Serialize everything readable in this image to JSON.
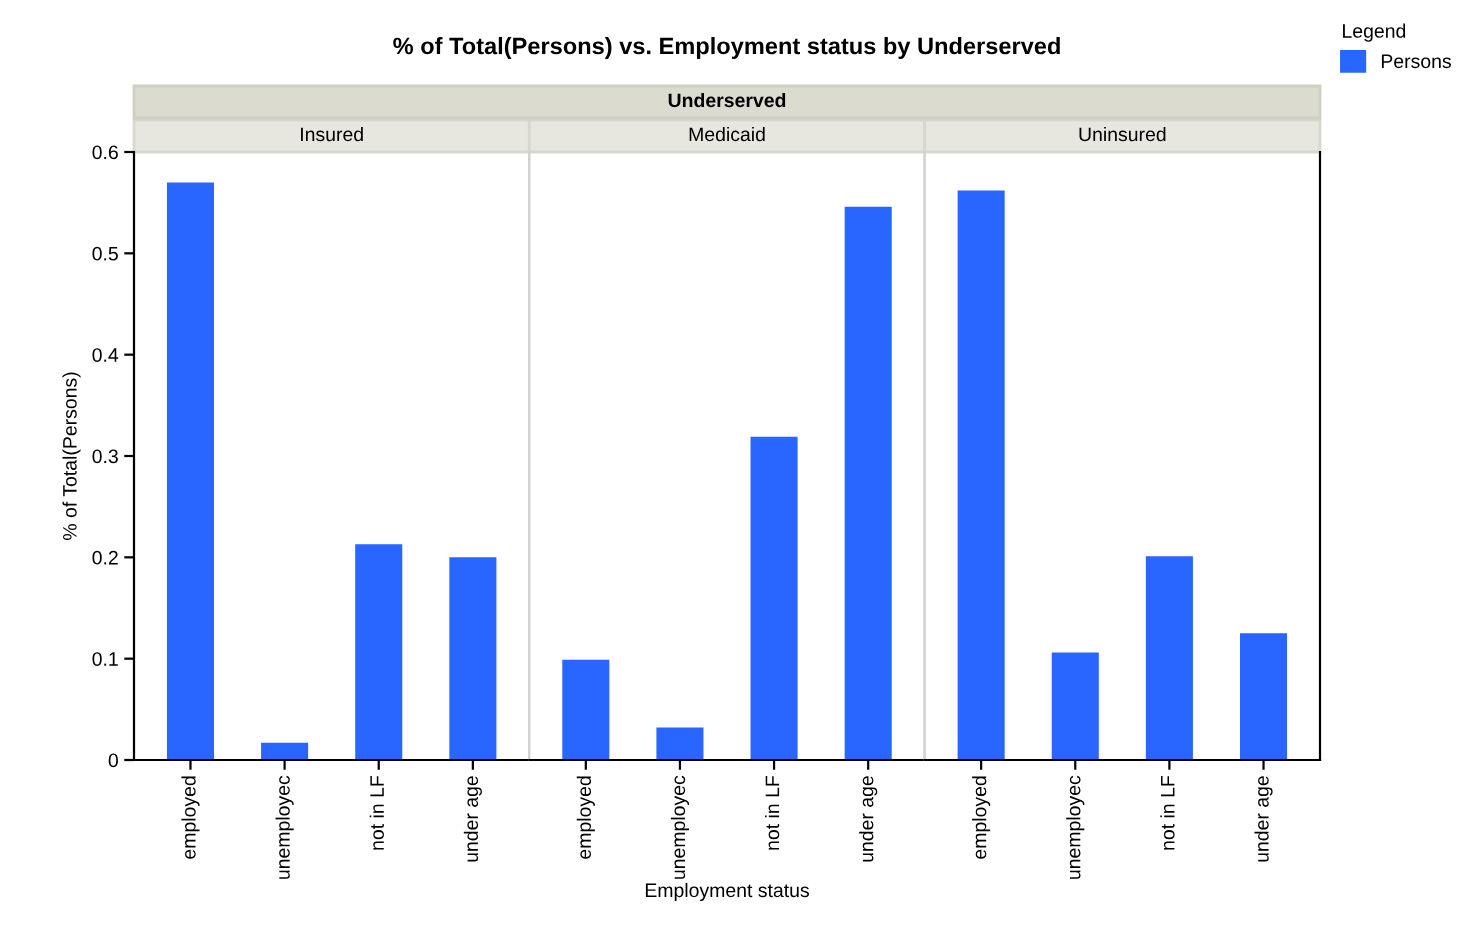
{
  "chart_data": [
    {
      "type": "bar",
      "title": "Insured",
      "ylabel": "% of Total(Persons)",
      "annotations": [
        "% of Total(Persons) vs. Employment status by Underserved",
        "Underserved"
      ],
      "categories": [
        "employed",
        "unemployec",
        "not in LF",
        "under age"
      ],
      "series": [
        {
          "color": "#2966ff",
          "values": [
            0.57,
            0.017,
            0.213,
            0.2
          ]
        }
      ],
      "ylim": [
        0,
        0.6
      ],
      "yticks": [
        0,
        0.1,
        0.2,
        0.3,
        0.4,
        0.5,
        0.6
      ],
      "grid": false
    },
    {
      "type": "bar",
      "title": "Medicaid",
      "xlabel": "Employment status",
      "categories": [
        "employed",
        "unemployec",
        "not in LF",
        "under age"
      ],
      "series": [
        {
          "color": "#2966ff",
          "values": [
            0.099,
            0.032,
            0.319,
            0.546
          ]
        }
      ],
      "ylim": [
        0,
        0.6
      ],
      "tick_labels": "x",
      "grid": false
    },
    {
      "type": "bar",
      "title": "Uninsured",
      "legend_title": "Legend",
      "legend": "right",
      "categories": [
        "employed",
        "unemployec",
        "not in LF",
        "under age"
      ],
      "series": [
        {
          "name": "Persons",
          "color": "#2966ff",
          "values": [
            0.562,
            0.106,
            0.201,
            0.125
          ]
        }
      ],
      "ylim": [
        0,
        0.6
      ],
      "tick_labels": "x",
      "grid": false
    }
  ]
}
